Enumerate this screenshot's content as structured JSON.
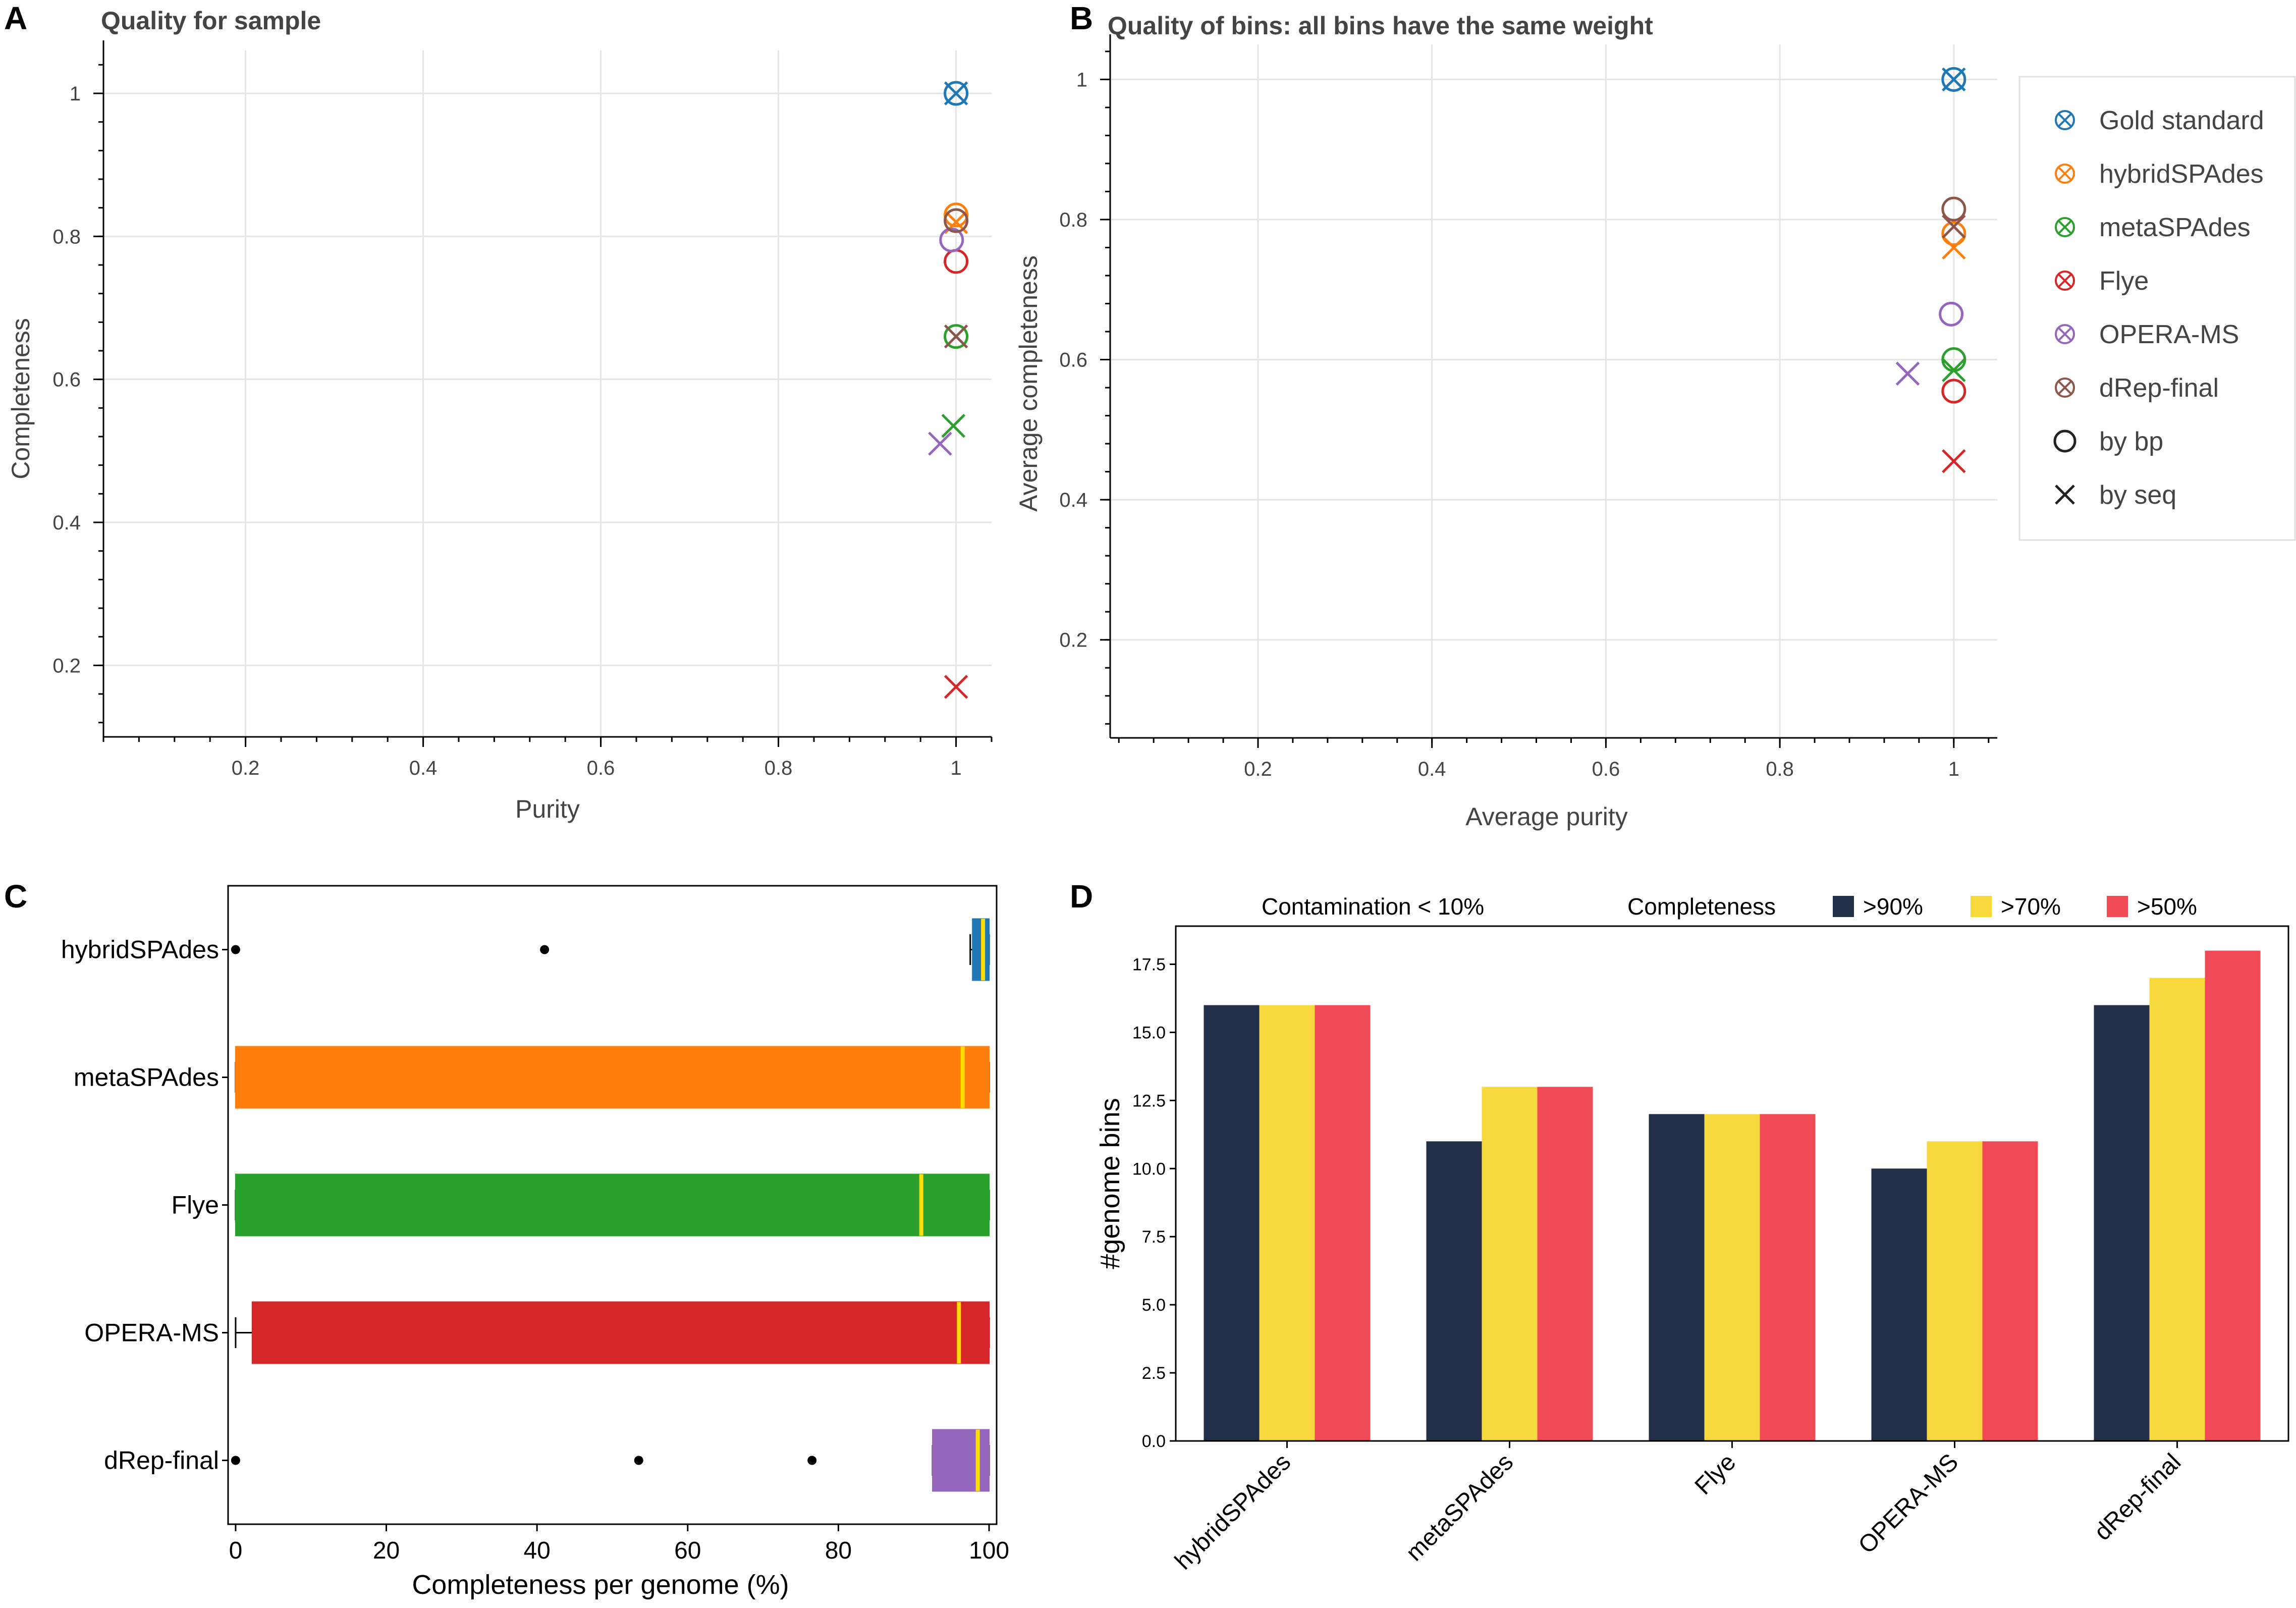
{
  "figure": {
    "panel_labels": [
      "A",
      "B",
      "C",
      "D"
    ]
  },
  "chart_data": [
    {
      "id": "A",
      "type": "scatter",
      "title": "Quality for sample",
      "xlabel": "Purity",
      "ylabel": "Completeness",
      "xlim": [
        0.04,
        1.04
      ],
      "ylim": [
        0.1,
        1.06
      ],
      "xticks": [
        "0.2",
        "0.4",
        "0.6",
        "0.8",
        "1"
      ],
      "xtick_values": [
        0.2,
        0.4,
        0.6,
        0.8,
        1.0
      ],
      "yticks": [
        "0.2",
        "0.4",
        "0.6",
        "0.8",
        "1"
      ],
      "ytick_values": [
        0.2,
        0.4,
        0.6,
        0.8,
        1.0
      ],
      "series": [
        {
          "name": "Gold standard",
          "color": "#1f77b4",
          "by_bp": [
            1.0,
            1.0
          ],
          "by_seq": [
            1.0,
            1.0
          ]
        },
        {
          "name": "hybridSPAdes",
          "color": "#ff7f0e",
          "by_bp": [
            1.0,
            0.83
          ],
          "by_seq": [
            1.0,
            0.82
          ]
        },
        {
          "name": "metaSPAdes",
          "color": "#2ca02c",
          "by_bp": [
            1.0,
            0.66
          ],
          "by_seq": [
            0.997,
            0.535
          ]
        },
        {
          "name": "Flye",
          "color": "#d62728",
          "by_bp": [
            1.0,
            0.765
          ],
          "by_seq": [
            1.0,
            0.17
          ]
        },
        {
          "name": "OPERA-MS",
          "color": "#9467bd",
          "by_bp": [
            0.995,
            0.795
          ],
          "by_seq": [
            0.982,
            0.51
          ]
        },
        {
          "name": "dRep-final",
          "color": "#8c564b",
          "by_bp": [
            1.0,
            0.822
          ],
          "by_seq": [
            1.0,
            0.66
          ]
        }
      ]
    },
    {
      "id": "B",
      "type": "scatter",
      "title": "Quality of bins: all bins have the same weight",
      "xlabel": "Average purity",
      "ylabel": "Average completeness",
      "xlim": [
        0.03,
        1.05
      ],
      "ylim": [
        0.06,
        1.05
      ],
      "xticks": [
        "0.2",
        "0.4",
        "0.6",
        "0.8",
        "1"
      ],
      "xtick_values": [
        0.2,
        0.4,
        0.6,
        0.8,
        1.0
      ],
      "yticks": [
        "0.2",
        "0.4",
        "0.6",
        "0.8",
        "1"
      ],
      "ytick_values": [
        0.2,
        0.4,
        0.6,
        0.8,
        1.0
      ],
      "legend": {
        "entries": [
          "Gold standard",
          "hybridSPAdes",
          "metaSPAdes",
          "Flye",
          "OPERA-MS",
          "dRep-final",
          "by bp",
          "by seq"
        ]
      },
      "series": [
        {
          "name": "Gold standard",
          "color": "#1f77b4",
          "by_bp": [
            1.0,
            1.0
          ],
          "by_seq": [
            1.0,
            1.0
          ]
        },
        {
          "name": "hybridSPAdes",
          "color": "#ff7f0e",
          "by_bp": [
            1.0,
            0.78
          ],
          "by_seq": [
            1.0,
            0.76
          ]
        },
        {
          "name": "metaSPAdes",
          "color": "#2ca02c",
          "by_bp": [
            1.0,
            0.6
          ],
          "by_seq": [
            1.0,
            0.585
          ]
        },
        {
          "name": "Flye",
          "color": "#d62728",
          "by_bp": [
            1.0,
            0.555
          ],
          "by_seq": [
            1.0,
            0.455
          ]
        },
        {
          "name": "OPERA-MS",
          "color": "#9467bd",
          "by_bp": [
            0.997,
            0.665
          ],
          "by_seq": [
            0.947,
            0.58
          ]
        },
        {
          "name": "dRep-final",
          "color": "#8c564b",
          "by_bp": [
            1.0,
            0.815
          ],
          "by_seq": [
            1.0,
            0.79
          ]
        }
      ]
    },
    {
      "id": "C",
      "type": "box",
      "orientation": "horizontal",
      "xlabel": "Completeness per genome (%)",
      "xlim": [
        -1,
        101
      ],
      "xticks": [
        "0",
        "20",
        "40",
        "60",
        "80",
        "100"
      ],
      "xtick_values": [
        0,
        20,
        40,
        60,
        80,
        100
      ],
      "median_color": "#ffdd00",
      "categories": [
        "hybridSPAdes",
        "metaSPAdes",
        "Flye",
        "OPERA-MS",
        "dRep-final"
      ],
      "boxes": [
        {
          "name": "hybridSPAdes",
          "color": "#1f77b4",
          "q1": 97.8,
          "median": 99.2,
          "q3": 100,
          "whisker_low": 97.5,
          "whisker_high": 100,
          "outliers": [
            0,
            41
          ]
        },
        {
          "name": "metaSPAdes",
          "color": "#ff7f0e",
          "q1": 0,
          "median": 96.5,
          "q3": 100,
          "whisker_low": 0,
          "whisker_high": 100,
          "outliers": []
        },
        {
          "name": "Flye",
          "color": "#2ca02c",
          "q1": 0,
          "median": 91,
          "q3": 100,
          "whisker_low": 0,
          "whisker_high": 100,
          "outliers": []
        },
        {
          "name": "OPERA-MS",
          "color": "#d62728",
          "q1": 2.2,
          "median": 96,
          "q3": 100,
          "whisker_low": 0,
          "whisker_high": 100,
          "outliers": []
        },
        {
          "name": "dRep-final",
          "color": "#9467bd",
          "q1": 92.5,
          "median": 98.5,
          "q3": 100,
          "whisker_low": 92.5,
          "whisker_high": 100,
          "outliers": [
            0,
            53.5,
            76.5
          ]
        }
      ]
    },
    {
      "id": "D",
      "type": "bar",
      "ylabel": "#genome bins",
      "ylim": [
        0,
        18.9
      ],
      "yticks": [
        "0.0",
        "2.5",
        "5.0",
        "7.5",
        "10.0",
        "12.5",
        "15.0",
        "17.5"
      ],
      "ytick_values": [
        0,
        2.5,
        5,
        7.5,
        10,
        12.5,
        15,
        17.5
      ],
      "categories": [
        "hybridSPAdes",
        "metaSPAdes",
        "Flye",
        "OPERA-MS",
        "dRep-final"
      ],
      "legend": {
        "contamination_label": "Contamination < 10%",
        "completeness_label": "Completeness"
      },
      "series": [
        {
          "name": ">90%",
          "color": "#232e48",
          "values": [
            16,
            11,
            12,
            10,
            16
          ]
        },
        {
          "name": ">70%",
          "color": "#f8d93d",
          "values": [
            16,
            13,
            12,
            11,
            17
          ]
        },
        {
          "name": ">50%",
          "color": "#f14a57",
          "values": [
            16,
            13,
            12,
            11,
            18
          ]
        }
      ]
    }
  ]
}
